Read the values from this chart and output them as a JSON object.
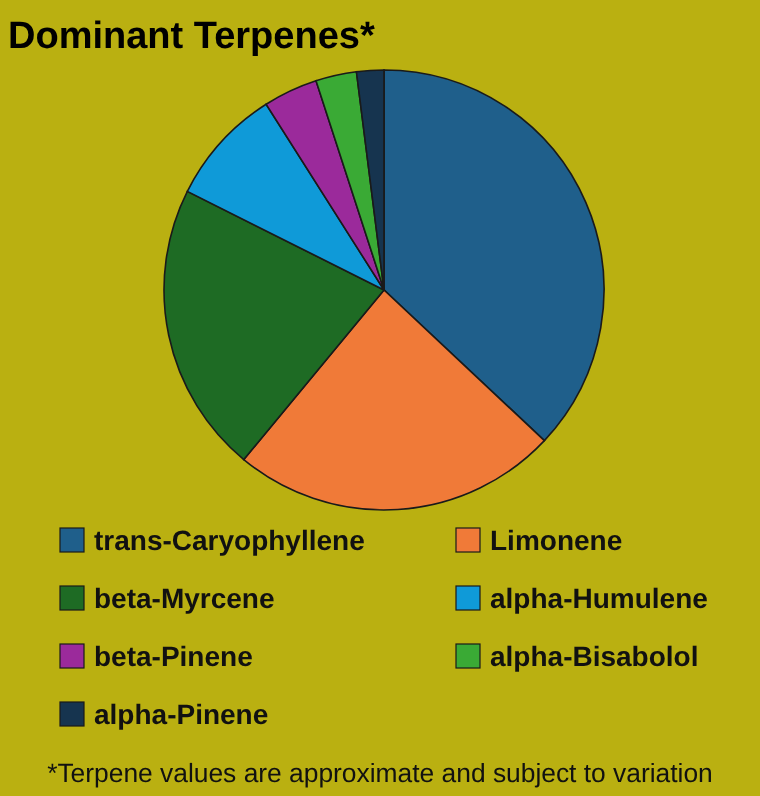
{
  "chart_data": {
    "type": "pie",
    "title": "Dominant Terpenes*",
    "categories": [
      "trans-Caryophyllene",
      "Limonene",
      "beta-Myrcene",
      "alpha-Humulene",
      "beta-Pinene",
      "alpha-Bisabolol",
      "alpha-Pinene"
    ],
    "values": [
      37,
      24,
      21.4,
      8.6,
      4,
      3,
      2
    ],
    "colors": [
      "#1f5f8b",
      "#f07a38",
      "#1e6b24",
      "#0f9ad8",
      "#9b2a9b",
      "#3aaa35",
      "#16344f"
    ],
    "legend": "bottom",
    "annotations": [
      "*Terpene values are approximate and subject to variation"
    ]
  }
}
